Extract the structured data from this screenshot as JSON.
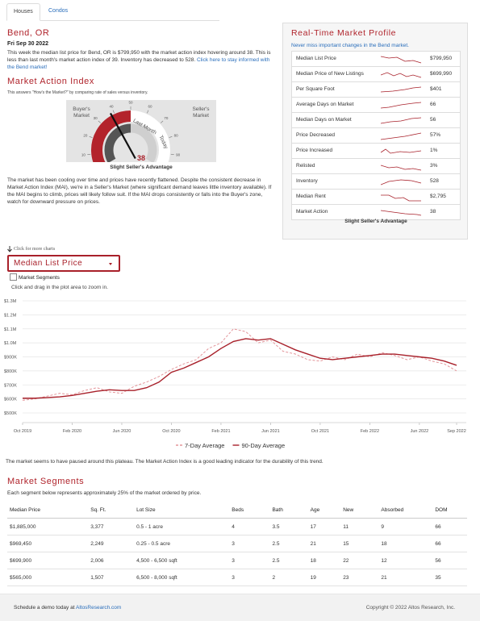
{
  "tabs": [
    "Houses",
    "Condos"
  ],
  "location": "Bend, OR",
  "date": "Fri Sep 30 2022",
  "summary": "This week the median list price for Bend, OR is $799,950 with the market action index hovering around 38. This is less than last month's market action index of 39. Inventory has decreased to 528. ",
  "summary_link": "Click here to stay informed with the Bend market!",
  "mai_title": "Market Action Index",
  "mai_subtitle": "This answers \"How's the Market?\" by comparing rate of sales versus inventory.",
  "gauge": {
    "value": 38,
    "ticks": [
      0,
      10,
      20,
      30,
      40,
      50,
      60,
      70,
      80,
      90,
      100
    ],
    "left_label": "Buyer's Market",
    "right_label": "Seller's Market",
    "last_month": "Last Month",
    "today": "Today",
    "caption": "Slight Seller's Advantage"
  },
  "analysis": "The market has been cooling over time and prices have recently flattened. Despite the consistent decrease in Market Action Index (MAI), we're in a Seller's Market (where significant demand leaves little inventory available). If the MAI begins to climb, prices will likely follow suit. If the MAI drops consistently or falls into the Buyer's zone, watch for downward pressure on prices.",
  "profile": {
    "title": "Real-Time Market Profile",
    "subtitle": "Never miss important changes in the Bend market.",
    "rows": [
      {
        "label": "Median List Price",
        "value": "$799,950"
      },
      {
        "label": "Median Price of New Listings",
        "value": "$699,990"
      },
      {
        "label": "Per Square Foot",
        "value": "$401"
      },
      {
        "label": "Average Days on Market",
        "value": "66"
      },
      {
        "label": "Median Days on Market",
        "value": "56"
      },
      {
        "label": "Price Decreased",
        "value": "57%"
      },
      {
        "label": "Price Increased",
        "value": "1%"
      },
      {
        "label": "Relisted",
        "value": "3%"
      },
      {
        "label": "Inventory",
        "value": "528"
      },
      {
        "label": "Median Rent",
        "value": "$2,795"
      },
      {
        "label": "Market Action",
        "value": "38"
      }
    ],
    "footer": "Slight Seller's Advantage"
  },
  "more_charts": "Click for more charts",
  "chart_selector": "Median List Price",
  "segments_toggle": "Market Segments",
  "zoom_hint": "Click and drag in the plot area to zoom in.",
  "chart_data": {
    "type": "line",
    "categories": [
      "Oct 2019",
      null,
      null,
      null,
      "Feb 2020",
      null,
      null,
      null,
      "Jun 2020",
      null,
      null,
      null,
      "Oct 2020",
      null,
      null,
      null,
      "Feb 2021",
      null,
      null,
      null,
      "Jun 2021",
      null,
      null,
      null,
      "Oct 2021",
      null,
      null,
      null,
      "Feb 2022",
      null,
      null,
      null,
      "Jun 2022",
      null,
      null,
      "Sep 2022"
    ],
    "series": [
      {
        "name": "7-Day Average",
        "color": "#e3959a",
        "dashed": true,
        "values": [
          590000,
          600000,
          620000,
          640000,
          630000,
          660000,
          680000,
          650000,
          640000,
          690000,
          720000,
          760000,
          810000,
          850000,
          880000,
          960000,
          1000000,
          1100000,
          1080000,
          1000000,
          1020000,
          940000,
          920000,
          880000,
          870000,
          900000,
          880000,
          920000,
          900000,
          930000,
          910000,
          880000,
          900000,
          870000,
          850000,
          800000
        ]
      },
      {
        "name": "90-Day Average",
        "color": "#a8202a",
        "values": [
          605000,
          605000,
          610000,
          615000,
          625000,
          640000,
          655000,
          665000,
          660000,
          660000,
          680000,
          720000,
          790000,
          820000,
          860000,
          900000,
          960000,
          1010000,
          1030000,
          1020000,
          1030000,
          990000,
          950000,
          920000,
          890000,
          880000,
          890000,
          900000,
          910000,
          920000,
          920000,
          910000,
          900000,
          890000,
          870000,
          840000
        ]
      }
    ],
    "ylim": [
      500000,
      1300000
    ],
    "yticks": [
      {
        "value": 500000,
        "label": "$500K"
      },
      {
        "value": 600000,
        "label": "$600K"
      },
      {
        "value": 700000,
        "label": "$700K"
      },
      {
        "value": 800000,
        "label": "$800K"
      },
      {
        "value": 900000,
        "label": "$900K"
      },
      {
        "value": 1000000,
        "label": "$1.0M"
      },
      {
        "value": 1100000,
        "label": "$1.1M"
      },
      {
        "value": 1200000,
        "label": "$1.2M"
      },
      {
        "value": 1300000,
        "label": "$1.3M"
      }
    ],
    "grid": true
  },
  "chart_note": "The market seems to have paused around this plateau. The Market Action Index is a good leading indicator for the durability of this trend.",
  "segments": {
    "title": "Market Segments",
    "subtitle": "Each segment below represents approximately 25% of the market ordered by price.",
    "columns": [
      "Median Price",
      "Sq. Ft.",
      "Lot Size",
      "Beds",
      "Bath",
      "Age",
      "New",
      "Absorbed",
      "DOM"
    ],
    "rows": [
      [
        "$1,885,000",
        "3,377",
        "0.5 - 1 acre",
        "4",
        "3.5",
        "17",
        "11",
        "9",
        "66"
      ],
      [
        "$969,450",
        "2,249",
        "0.25 - 0.5 acre",
        "3",
        "2.5",
        "21",
        "15",
        "18",
        "66"
      ],
      [
        "$699,900",
        "2,006",
        "4,500 - 6,500 sqft",
        "3",
        "2.5",
        "18",
        "22",
        "12",
        "56"
      ],
      [
        "$565,000",
        "1,507",
        "6,500 - 8,000 sqft",
        "3",
        "2",
        "19",
        "23",
        "21",
        "35"
      ]
    ]
  },
  "footer": {
    "left_text": "Schedule a demo today at ",
    "left_link": "AltosResearch.com",
    "right": "Copyright © 2022 Altos Research, Inc."
  }
}
